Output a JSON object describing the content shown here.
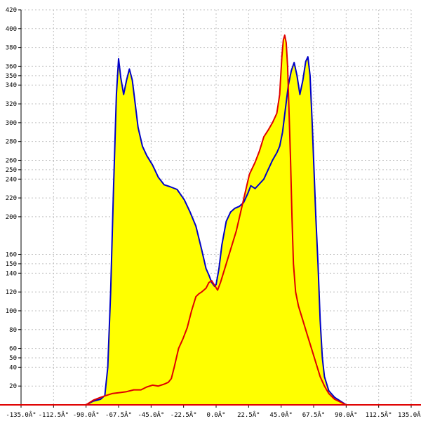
{
  "chart_data": {
    "type": "area",
    "title": "",
    "xlabel": "",
    "ylabel": "",
    "xlim": [
      -135,
      135
    ],
    "ylim": [
      0,
      420
    ],
    "grid": true,
    "x_tick_values": [
      -135,
      -112.5,
      -90,
      -67.5,
      -45,
      -22.5,
      0,
      22.5,
      45,
      67.5,
      90,
      112.5,
      135
    ],
    "x_tick_labels": [
      "-135.0Â°",
      "-112.5Â°",
      "-90.0Â°",
      "-67.5Â°",
      "-45.0Â°",
      "-22.5Â°",
      "0.0Â°",
      "22.5Â°",
      "45.0Â°",
      "67.5Â°",
      "90.0Â°",
      "112.5Â°",
      "135.0Â°"
    ],
    "y_tick_values": [
      20,
      40,
      50,
      60,
      80,
      100,
      120,
      140,
      150,
      160,
      200,
      220,
      240,
      250,
      260,
      280,
      300,
      320,
      340,
      350,
      360,
      380,
      400,
      420
    ],
    "y_tick_labels": [
      "20",
      "40",
      "50",
      "60",
      "80",
      "100",
      "120",
      "140",
      "150",
      "160",
      "200",
      "220",
      "240",
      "250",
      "260",
      "280",
      "300",
      "320",
      "340",
      "350",
      "360",
      "380",
      "400",
      "420"
    ],
    "colors": {
      "fill": "#ffff00",
      "blue": "#0000c8",
      "red": "#e00000",
      "baseline": "#e00000",
      "grid": "#c0c0c0",
      "axis": "#000000"
    },
    "series": [
      {
        "color": "#0000c8",
        "filled": true,
        "points": [
          [
            -90,
            0
          ],
          [
            -85,
            4
          ],
          [
            -80,
            6
          ],
          [
            -77,
            10
          ],
          [
            -75,
            40
          ],
          [
            -73,
            120
          ],
          [
            -71,
            230
          ],
          [
            -69,
            330
          ],
          [
            -67.5,
            368
          ],
          [
            -66,
            348
          ],
          [
            -64,
            330
          ],
          [
            -62,
            345
          ],
          [
            -60,
            357
          ],
          [
            -58,
            345
          ],
          [
            -56,
            320
          ],
          [
            -54,
            295
          ],
          [
            -51,
            275
          ],
          [
            -48,
            265
          ],
          [
            -44,
            255
          ],
          [
            -40,
            242
          ],
          [
            -36,
            234
          ],
          [
            -32,
            232
          ],
          [
            -27,
            229
          ],
          [
            -22,
            218
          ],
          [
            -18,
            205
          ],
          [
            -14,
            190
          ],
          [
            -10,
            165
          ],
          [
            -7,
            145
          ],
          [
            -5,
            138
          ],
          [
            -3,
            130
          ],
          [
            -1,
            126
          ],
          [
            0,
            128
          ],
          [
            2,
            145
          ],
          [
            4,
            170
          ],
          [
            7,
            195
          ],
          [
            10,
            205
          ],
          [
            13,
            209
          ],
          [
            16,
            211
          ],
          [
            19,
            215
          ],
          [
            22,
            225
          ],
          [
            24,
            233
          ],
          [
            27,
            230
          ],
          [
            30,
            235
          ],
          [
            33,
            240
          ],
          [
            36,
            250
          ],
          [
            39,
            260
          ],
          [
            42,
            268
          ],
          [
            44,
            275
          ],
          [
            46,
            290
          ],
          [
            48,
            315
          ],
          [
            50,
            340
          ],
          [
            52,
            355
          ],
          [
            54,
            364
          ],
          [
            56,
            350
          ],
          [
            58,
            330
          ],
          [
            60,
            345
          ],
          [
            62,
            365
          ],
          [
            63.5,
            370
          ],
          [
            65,
            350
          ],
          [
            66.5,
            300
          ],
          [
            67.5,
            260
          ],
          [
            69,
            200
          ],
          [
            70.5,
            150
          ],
          [
            72,
            90
          ],
          [
            73.5,
            50
          ],
          [
            75,
            30
          ],
          [
            78,
            15
          ],
          [
            82,
            8
          ],
          [
            86,
            4
          ],
          [
            90,
            0
          ]
        ]
      },
      {
        "color": "#e00000",
        "filled": true,
        "points": [
          [
            -90,
            0
          ],
          [
            -85,
            5
          ],
          [
            -80,
            8
          ],
          [
            -76,
            10
          ],
          [
            -72,
            12
          ],
          [
            -67,
            13
          ],
          [
            -62,
            14
          ],
          [
            -57,
            16
          ],
          [
            -52,
            16
          ],
          [
            -48,
            19
          ],
          [
            -44,
            21
          ],
          [
            -40,
            20
          ],
          [
            -36,
            22
          ],
          [
            -33,
            24
          ],
          [
            -31,
            28
          ],
          [
            -29,
            40
          ],
          [
            -26,
            60
          ],
          [
            -23,
            70
          ],
          [
            -20,
            82
          ],
          [
            -17,
            100
          ],
          [
            -14,
            115
          ],
          [
            -12,
            118
          ],
          [
            -10,
            120
          ],
          [
            -7,
            124
          ],
          [
            -5,
            130
          ],
          [
            -3,
            132
          ],
          [
            -1,
            127
          ],
          [
            1,
            122
          ],
          [
            3,
            130
          ],
          [
            6,
            145
          ],
          [
            10,
            165
          ],
          [
            14,
            185
          ],
          [
            17,
            205
          ],
          [
            20,
            225
          ],
          [
            23,
            245
          ],
          [
            27,
            258
          ],
          [
            30,
            270
          ],
          [
            33,
            285
          ],
          [
            36,
            292
          ],
          [
            39,
            300
          ],
          [
            42,
            310
          ],
          [
            44,
            330
          ],
          [
            45.5,
            370
          ],
          [
            46.5,
            388
          ],
          [
            47.5,
            393
          ],
          [
            48.5,
            385
          ],
          [
            49.5,
            360
          ],
          [
            50.5,
            310
          ],
          [
            51.5,
            260
          ],
          [
            52.5,
            200
          ],
          [
            53.5,
            150
          ],
          [
            55,
            120
          ],
          [
            57,
            105
          ],
          [
            60,
            90
          ],
          [
            63,
            75
          ],
          [
            66,
            60
          ],
          [
            69,
            45
          ],
          [
            72,
            30
          ],
          [
            75,
            20
          ],
          [
            78,
            12
          ],
          [
            82,
            6
          ],
          [
            86,
            3
          ],
          [
            90,
            0
          ]
        ]
      }
    ]
  }
}
